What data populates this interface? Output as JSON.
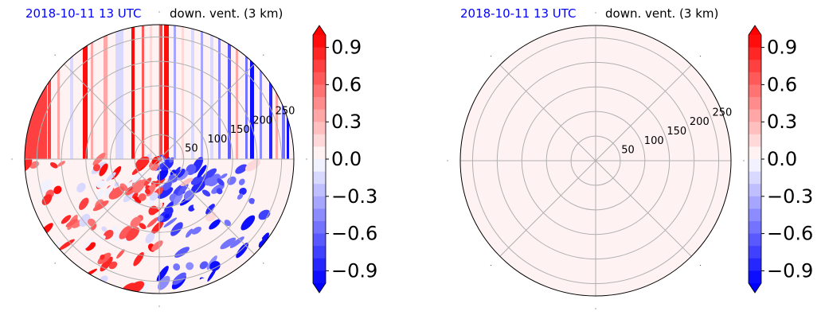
{
  "chart_data": [
    {
      "type": "heatmap",
      "projection": "polar",
      "title_left": "2018-10-11 13 UTC",
      "title_right": "down. vent. (3 km)",
      "radial_ticks": [
        "50",
        "100",
        "150",
        "200",
        "250"
      ],
      "colorbar": {
        "ticks": [
          "0.9",
          "0.6",
          "0.3",
          "0.0",
          "−0.3",
          "−0.6",
          "−0.9"
        ],
        "tick_values": [
          0.9,
          0.6,
          0.3,
          0.0,
          -0.3,
          -0.6,
          -0.9
        ],
        "range": [
          -1.0,
          1.0
        ],
        "extend": "both",
        "levels": 20,
        "colormap": "bwr"
      },
      "field": "mixed",
      "grid": true
    },
    {
      "type": "heatmap",
      "projection": "polar",
      "title_left": "2018-10-11 13 UTC",
      "title_right": "down. vent. (3 km)",
      "radial_ticks": [
        "50",
        "100",
        "150",
        "200",
        "250"
      ],
      "colorbar": {
        "ticks": [
          "0.9",
          "0.6",
          "0.3",
          "0.0",
          "−0.3",
          "−0.6",
          "−0.9"
        ],
        "tick_values": [
          0.9,
          0.6,
          0.3,
          0.0,
          -0.3,
          -0.6,
          -0.9
        ],
        "range": [
          -1.0,
          1.0
        ],
        "extend": "both",
        "levels": 20,
        "colormap": "bwr"
      },
      "field": "uniform",
      "uniform_value": 0.05,
      "grid": true
    }
  ],
  "colors": {
    "title_date": "#0000ff",
    "grid": "#b0b0b0",
    "negative_max": "#0000ff",
    "positive_max": "#ff0000",
    "neutral": "#ffffff"
  }
}
